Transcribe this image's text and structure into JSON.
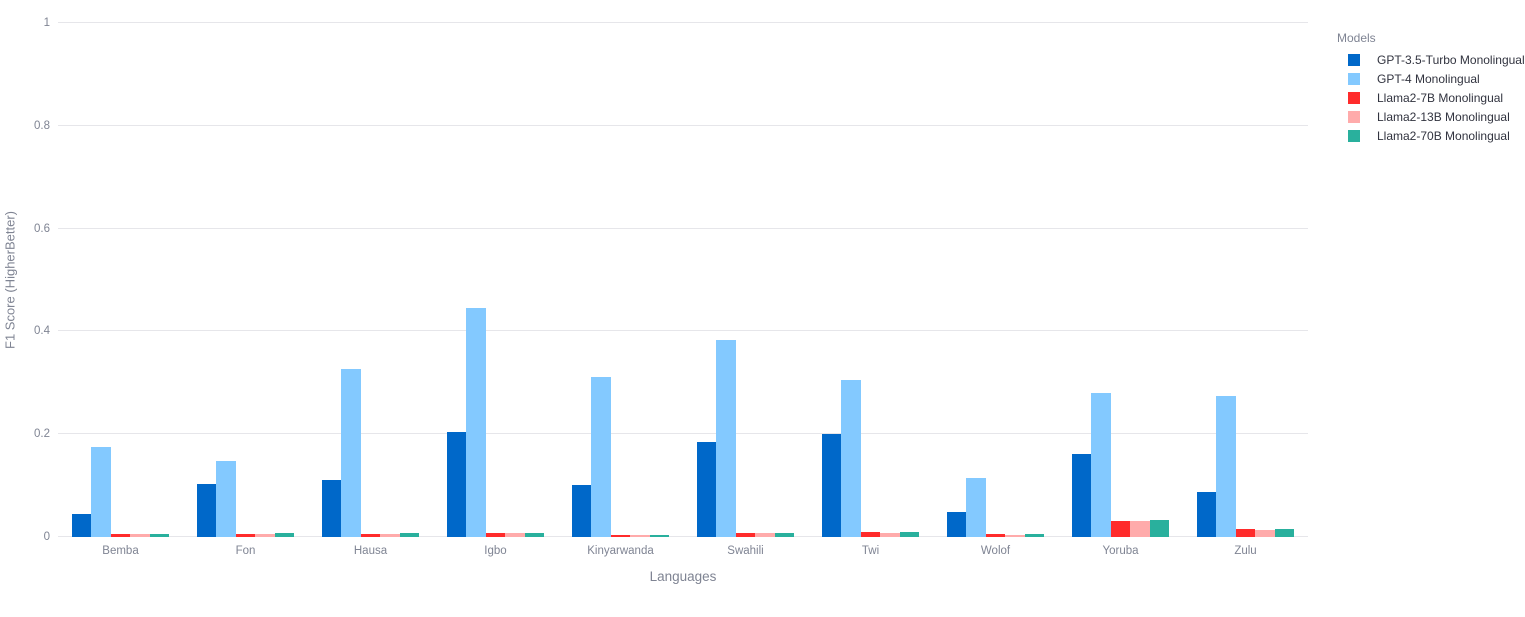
{
  "style": {
    "background": "#ffffff",
    "grid_color": "#e6e6ea",
    "tick_text_color": "#7f8493",
    "axis_title_color": "#7f8493",
    "legend_title_color": "#7f8493",
    "legend_text_color": "#31333f"
  },
  "chart_data": {
    "type": "bar",
    "title": "",
    "xlabel": "Languages",
    "ylabel": "F1 Score (HigherBetter)",
    "ylim": [
      0,
      1
    ],
    "grid": true,
    "legend_title": "Models",
    "legend_position": "top-right",
    "yticks": [
      {
        "value": 0,
        "label": "0"
      },
      {
        "value": 0.2,
        "label": "0.2"
      },
      {
        "value": 0.4,
        "label": "0.4"
      },
      {
        "value": 0.6,
        "label": "0.6"
      },
      {
        "value": 0.8,
        "label": "0.8"
      },
      {
        "value": 1,
        "label": "1"
      }
    ],
    "categories": [
      "Bemba",
      "Fon",
      "Hausa",
      "Igbo",
      "Kinyarwanda",
      "Swahili",
      "Twi",
      "Wolof",
      "Yoruba",
      "Zulu"
    ],
    "series": [
      {
        "name": "GPT-3.5-Turbo Monolingual",
        "color": "#0068c9",
        "values": [
          0.044,
          0.104,
          0.111,
          0.204,
          0.102,
          0.184,
          0.201,
          0.049,
          0.162,
          0.088
        ]
      },
      {
        "name": "GPT-4 Monolingual",
        "color": "#83c9ff",
        "values": [
          0.175,
          0.148,
          0.327,
          0.445,
          0.312,
          0.384,
          0.305,
          0.114,
          0.28,
          0.274
        ]
      },
      {
        "name": "Llama2-7B Monolingual",
        "color": "#ff2b2b",
        "values": [
          0.005,
          0.006,
          0.006,
          0.008,
          0.004,
          0.008,
          0.009,
          0.005,
          0.031,
          0.015
        ]
      },
      {
        "name": "Llama2-13B Monolingual",
        "color": "#ffabab",
        "values": [
          0.005,
          0.006,
          0.006,
          0.007,
          0.004,
          0.008,
          0.008,
          0.004,
          0.032,
          0.014
        ]
      },
      {
        "name": "Llama2-70B Monolingual",
        "color": "#29b09d",
        "values": [
          0.005,
          0.007,
          0.007,
          0.008,
          0.004,
          0.008,
          0.009,
          0.005,
          0.033,
          0.015
        ]
      }
    ]
  }
}
